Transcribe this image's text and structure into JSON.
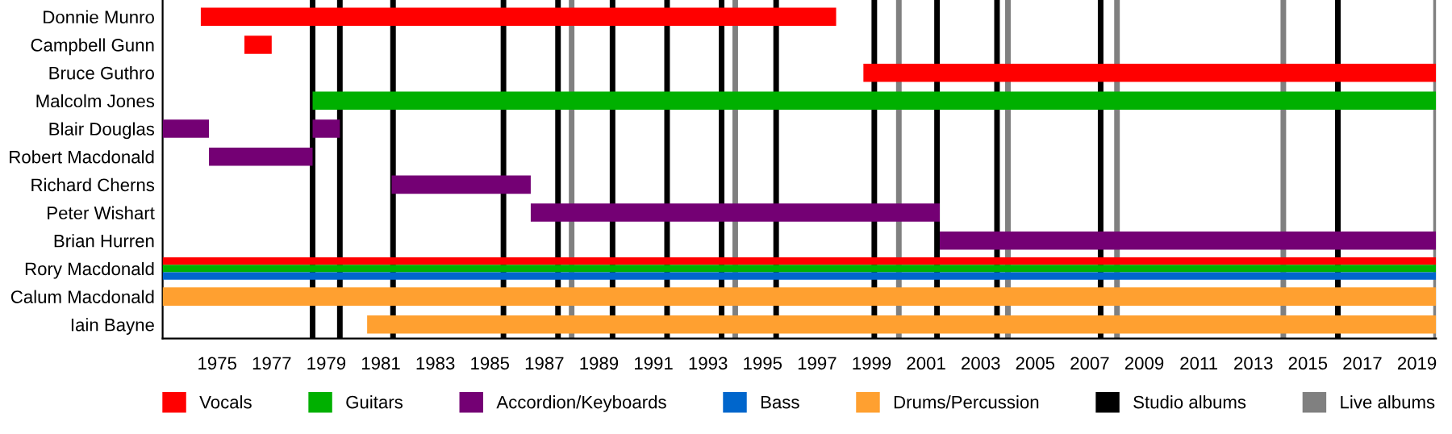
{
  "chart_data": {
    "type": "bar",
    "orientation": "horizontal",
    "categories": [
      "Donnie Munro",
      "Campbell Gunn",
      "Bruce Guthro",
      "Malcolm Jones",
      "Blair Douglas",
      "Robert Macdonald",
      "Richard Cherns",
      "Peter Wishart",
      "Brian Hurren",
      "Rory Macdonald",
      "Calum Macdonald",
      "Iain Bayne"
    ],
    "series": [
      {
        "name": "Vocals",
        "color": "#ff0000",
        "base": [
          1974.4,
          1976.0,
          1998.7,
          null,
          null,
          null,
          null,
          null,
          null,
          1973.0,
          null,
          null
        ],
        "values": [
          23.3,
          1.0,
          21.0,
          null,
          null,
          null,
          null,
          null,
          null,
          46.7,
          null,
          null
        ]
      },
      {
        "name": "Guitars",
        "color": "#00b000",
        "base": [
          null,
          null,
          null,
          1978.5,
          null,
          null,
          null,
          null,
          null,
          1973.0,
          null,
          null
        ],
        "values": [
          null,
          null,
          null,
          41.2,
          null,
          null,
          null,
          null,
          null,
          46.7,
          null,
          null
        ]
      },
      {
        "name": "Accordion/Keyboards",
        "color": "#740074",
        "base": [
          null,
          null,
          null,
          null,
          1973.0,
          1974.7,
          1981.4,
          1986.5,
          2001.5,
          null,
          null,
          null
        ],
        "values": [
          null,
          null,
          null,
          null,
          1.7,
          3.8,
          5.1,
          15.0,
          18.2,
          null,
          null,
          null
        ]
      },
      {
        "color": "#740074",
        "base": [
          null,
          null,
          null,
          null,
          1978.5,
          null,
          null,
          null,
          null,
          null,
          null,
          null
        ],
        "values": [
          null,
          null,
          null,
          null,
          1.0,
          null,
          null,
          null,
          null,
          null,
          null,
          null
        ]
      },
      {
        "name": "Bass",
        "color": "#0066cc",
        "base": [
          null,
          null,
          null,
          null,
          null,
          null,
          null,
          null,
          null,
          1973.0,
          null,
          null
        ],
        "values": [
          null,
          null,
          null,
          null,
          null,
          null,
          null,
          null,
          null,
          46.7,
          null,
          null
        ]
      },
      {
        "name": "Drums/Percussion",
        "color": "#ffa030",
        "base": [
          null,
          null,
          null,
          null,
          null,
          null,
          null,
          null,
          null,
          null,
          1973.0,
          1980.5
        ],
        "values": [
          null,
          null,
          null,
          null,
          null,
          null,
          null,
          null,
          null,
          null,
          46.7,
          39.2
        ]
      }
    ],
    "ref_lines": [
      {
        "axis": "x",
        "value": 1978.5,
        "label": "Studio albums",
        "color": "#000000"
      },
      {
        "axis": "x",
        "value": 1979.5,
        "color": "#000000"
      },
      {
        "axis": "x",
        "value": 1981.45,
        "color": "#000000"
      },
      {
        "axis": "x",
        "value": 1985.5,
        "color": "#000000"
      },
      {
        "axis": "x",
        "value": 1987.5,
        "color": "#000000"
      },
      {
        "axis": "x",
        "value": 1989.5,
        "color": "#000000"
      },
      {
        "axis": "x",
        "value": 1991.5,
        "color": "#000000"
      },
      {
        "axis": "x",
        "value": 1993.5,
        "color": "#000000"
      },
      {
        "axis": "x",
        "value": 1995.5,
        "color": "#000000"
      },
      {
        "axis": "x",
        "value": 1999.1,
        "color": "#000000"
      },
      {
        "axis": "x",
        "value": 2001.4,
        "color": "#000000"
      },
      {
        "axis": "x",
        "value": 2003.6,
        "color": "#000000"
      },
      {
        "axis": "x",
        "value": 2007.4,
        "color": "#000000"
      },
      {
        "axis": "x",
        "value": 2016.1,
        "color": "#000000"
      },
      {
        "axis": "x",
        "value": 1988.0,
        "label": "Live albums",
        "color": "#808080"
      },
      {
        "axis": "x",
        "value": 1994.0,
        "color": "#808080"
      },
      {
        "axis": "x",
        "value": 2000.0,
        "color": "#808080"
      },
      {
        "axis": "x",
        "value": 2004.0,
        "color": "#808080"
      },
      {
        "axis": "x",
        "value": 2008.0,
        "color": "#808080"
      },
      {
        "axis": "x",
        "value": 2014.1,
        "color": "#808080"
      },
      {
        "axis": "x",
        "value": 2019.7,
        "color": "#808080"
      }
    ],
    "xlim": [
      1973.0,
      2019.7
    ],
    "xticks": [
      1975,
      1977,
      1979,
      1981,
      1983,
      1985,
      1987,
      1989,
      1991,
      1993,
      1995,
      1997,
      1999,
      2001,
      2003,
      2005,
      2007,
      2009,
      2011,
      2013,
      2015,
      2017,
      2019
    ],
    "grid": false,
    "legend": "bottom"
  }
}
